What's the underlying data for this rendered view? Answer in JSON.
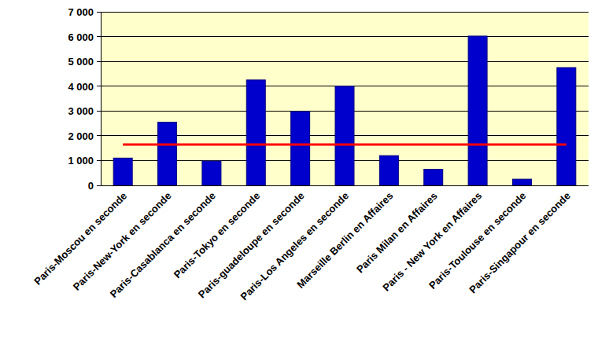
{
  "chart_data": {
    "type": "bar",
    "categories": [
      "Paris-Moscou en seconde",
      "Paris-New-York en seconde",
      "Paris-Casablanca en seconde",
      "Paris-Tokyo en seconde",
      "Paris-guadeloupe en seconde",
      "Paris-Los Angeles en seconde",
      "Marseille Berlin en Affaires",
      "Paris Milan en Affaires",
      "Paris - New York en Affaires",
      "Paris-Toulouse en seconde",
      "Paris-Singapour en seconde"
    ],
    "series": [
      {
        "type": "bar",
        "color": "#0000cc",
        "values": [
          1100,
          2550,
          980,
          4250,
          2980,
          4000,
          1200,
          650,
          6020,
          250,
          4750
        ]
      },
      {
        "type": "line",
        "color": "#ff0000",
        "values": [
          1650,
          1650,
          1650,
          1650,
          1650,
          1650,
          1650,
          1650,
          1650,
          1650,
          1650
        ]
      }
    ],
    "ylim": [
      0,
      7000
    ],
    "yticks": [
      0,
      {
        "value": 1000,
        "label": "1 000"
      },
      {
        "value": 2000,
        "label": "2 000"
      },
      {
        "value": 3000,
        "label": "3 000"
      },
      {
        "value": 4000,
        "label": "4 000"
      },
      {
        "value": 5000,
        "label": "5 000"
      },
      {
        "value": 6000,
        "label": "6 000"
      },
      {
        "value": 7000,
        "label": "7 000"
      }
    ],
    "grid": true
  }
}
